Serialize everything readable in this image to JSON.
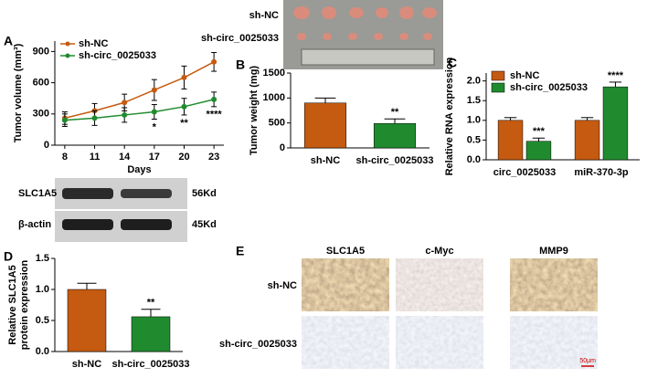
{
  "panel_labels": [
    "A",
    "B",
    "C",
    "D",
    "E"
  ],
  "tumor_photo": {
    "rows": [
      "sh-NC",
      "sh-circ_0025033"
    ]
  },
  "western_blot": {
    "rows": [
      "SLC1A5",
      "β-actin"
    ],
    "sizes": [
      "56Kd",
      "45Kd"
    ]
  },
  "ihc": {
    "columns": [
      "SLC1A5",
      "c-Myc",
      "MMP9"
    ],
    "rows": [
      "sh-NC",
      "sh-circ_0025033"
    ],
    "scale_bar": "50μm"
  },
  "chart_data": [
    {
      "type": "line",
      "xlabel": "Days",
      "ylabel": "Tumor volume (mm³)",
      "x": [
        8,
        11,
        14,
        17,
        20,
        23
      ],
      "xlim": [
        7,
        24
      ],
      "xticks": [
        8,
        11,
        14,
        17,
        20,
        23
      ],
      "ylim": [
        0,
        1000
      ],
      "yticks": [
        0,
        300,
        600,
        900
      ],
      "legend": "upper left",
      "series": [
        {
          "name": "sh-NC",
          "color": "#c55a11",
          "values": [
            260,
            330,
            410,
            530,
            650,
            800
          ],
          "errors": [
            60,
            70,
            80,
            100,
            110,
            90
          ]
        },
        {
          "name": "sh-circ_0025033",
          "color": "#1f8b2e",
          "values": [
            240,
            260,
            290,
            320,
            370,
            440
          ],
          "errors": [
            60,
            70,
            70,
            70,
            80,
            70
          ],
          "annotations": [
            null,
            null,
            null,
            "*",
            "**",
            "****"
          ]
        }
      ]
    },
    {
      "type": "bar",
      "ylabel": "Tumor weight (mg)",
      "categories": [
        "sh-NC",
        "sh-circ_0025033"
      ],
      "values": [
        900,
        490
      ],
      "errors": [
        100,
        90
      ],
      "colors": [
        "#c55a11",
        "#1f8b2e"
      ],
      "annotations": [
        null,
        "**"
      ],
      "ylim": [
        0,
        1500
      ],
      "yticks": [
        0,
        500,
        1000,
        1500
      ]
    },
    {
      "type": "bar",
      "ylabel": "Relative RNA expression",
      "categories": [
        "circ_0025033",
        "miR-370-3p"
      ],
      "series": [
        {
          "name": "sh-NC",
          "color": "#c55a11",
          "values": [
            1.0,
            1.0
          ],
          "errors": [
            0.07,
            0.07
          ]
        },
        {
          "name": "sh-circ_0025033",
          "color": "#1f8b2e",
          "values": [
            0.47,
            1.85
          ],
          "errors": [
            0.08,
            0.12
          ],
          "annotations": [
            "***",
            "****"
          ]
        }
      ],
      "legend": "upper left",
      "ylim": [
        0,
        2.2
      ],
      "yticks": [
        {
          "value": 0,
          "label": "0.0"
        },
        0.5,
        {
          "value": 1,
          "label": "1.0"
        },
        1.5,
        {
          "value": 2,
          "label": "2.0"
        }
      ]
    },
    {
      "type": "bar",
      "ylabel": [
        "Relative SLC1A5",
        "protein expression"
      ],
      "categories": [
        "sh-NC",
        "sh-circ_0025033"
      ],
      "values": [
        1.0,
        0.56
      ],
      "errors": [
        0.1,
        0.12
      ],
      "colors": [
        "#c55a11",
        "#1f8b2e"
      ],
      "annotations": [
        null,
        "**"
      ],
      "ylim": [
        0,
        1.5
      ],
      "yticks": [
        {
          "value": 0,
          "label": "0.0"
        },
        0.5,
        {
          "value": 1,
          "label": "1.0"
        },
        1.5
      ]
    }
  ]
}
